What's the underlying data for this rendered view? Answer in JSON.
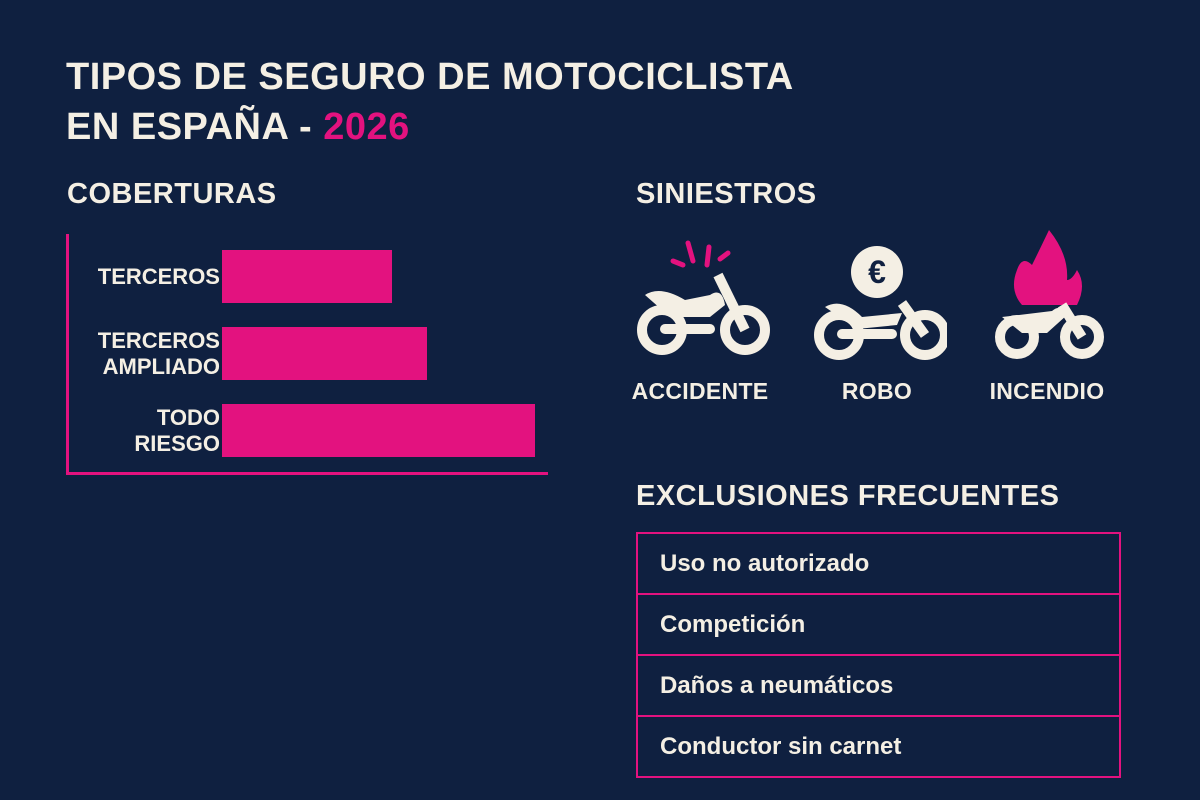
{
  "title": {
    "line1": "TIPOS DE SEGURO DE MOTOCICLISTA",
    "line2": "EN ESPAÑA - ",
    "year": "2026"
  },
  "colors": {
    "background": "#0f2040",
    "accent": "#e3127f",
    "text": "#f4efe4"
  },
  "coverage": {
    "heading": "COBERTURAS",
    "items": [
      {
        "label_lines": [
          "TERCEROS"
        ],
        "relative_value": 0.52
      },
      {
        "label_lines": [
          "TERCEROS",
          "AMPLIADO"
        ],
        "relative_value": 0.63
      },
      {
        "label_lines": [
          "TODO",
          "RIESGO"
        ],
        "relative_value": 0.96
      }
    ]
  },
  "claims": {
    "heading": "SINIESTROS",
    "items": [
      {
        "label": "ACCIDENTE",
        "icon": "motorcycle-crash-icon"
      },
      {
        "label": "ROBO",
        "icon": "motorcycle-euro-icon",
        "symbol": "€"
      },
      {
        "label": "INCENDIO",
        "icon": "motorcycle-fire-icon"
      }
    ]
  },
  "exclusions": {
    "heading": "EXCLUSIONES FRECUENTES",
    "items": [
      "Uso no autorizado",
      "Competición",
      "Daños a neumáticos",
      "Conductor sin carnet"
    ]
  }
}
